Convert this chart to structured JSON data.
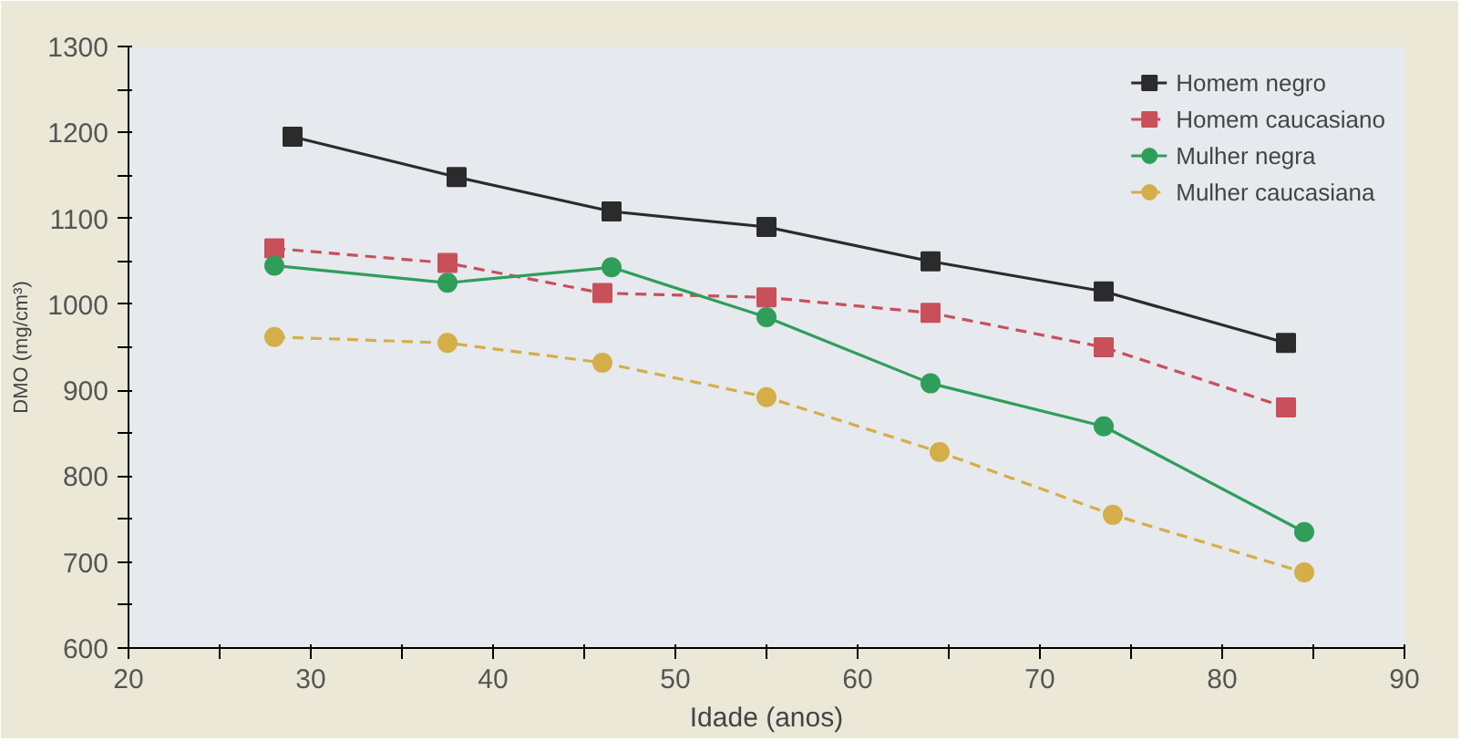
{
  "chart_data": {
    "type": "line",
    "xlabel": "Idade (anos)",
    "ylabel": "DMO (mg/cm³)",
    "xlim": [
      20,
      90
    ],
    "ylim": [
      600,
      1300
    ],
    "xticks": [
      20,
      {
        "value": 25,
        "label": null
      },
      30,
      {
        "value": 35,
        "label": null
      },
      40,
      {
        "value": 45,
        "label": null
      },
      50,
      {
        "value": 55,
        "label": null
      },
      60,
      {
        "value": 65,
        "label": null
      },
      70,
      {
        "value": 75,
        "label": null
      },
      80,
      {
        "value": 85,
        "label": null
      },
      90
    ],
    "yticks": [
      600,
      {
        "value": 650,
        "label": null
      },
      700,
      {
        "value": 750,
        "label": null
      },
      800,
      {
        "value": 850,
        "label": null
      },
      900,
      {
        "value": 950,
        "label": null
      },
      1000,
      {
        "value": 1050,
        "label": null
      },
      1100,
      {
        "value": 1150,
        "label": null
      },
      1200,
      {
        "value": 1250,
        "label": null
      },
      1300
    ],
    "grid": false,
    "legend": "top right",
    "series": [
      {
        "name": "Homem negro",
        "color": "#2b2b2b",
        "marker": "square",
        "line_style": "solid",
        "x": [
          29,
          38,
          46.5,
          55,
          64,
          73.5,
          83.5
        ],
        "values": [
          1195,
          1148,
          1108,
          1090,
          1050,
          1015,
          955
        ]
      },
      {
        "name": "Homem caucasiano",
        "color": "#c8505a",
        "marker": "square",
        "line_style": "dashed",
        "x": [
          28,
          37.5,
          46,
          55,
          64,
          73.5,
          83.5
        ],
        "values": [
          1065,
          1048,
          1013,
          1008,
          990,
          950,
          880
        ]
      },
      {
        "name": "Mulher negra",
        "color": "#2e9e5a",
        "marker": "circle",
        "line_style": "solid",
        "x": [
          28,
          37.5,
          46.5,
          55,
          64,
          73.5,
          84.5
        ],
        "values": [
          1045,
          1025,
          1043,
          985,
          908,
          858,
          735
        ]
      },
      {
        "name": "Mulher caucasiana",
        "color": "#d4ae48",
        "marker": "circle",
        "line_style": "dashed",
        "x": [
          28,
          37.5,
          46,
          55,
          64.5,
          74,
          84.5
        ],
        "values": [
          962,
          955,
          932,
          892,
          828,
          755,
          688
        ]
      }
    ]
  }
}
